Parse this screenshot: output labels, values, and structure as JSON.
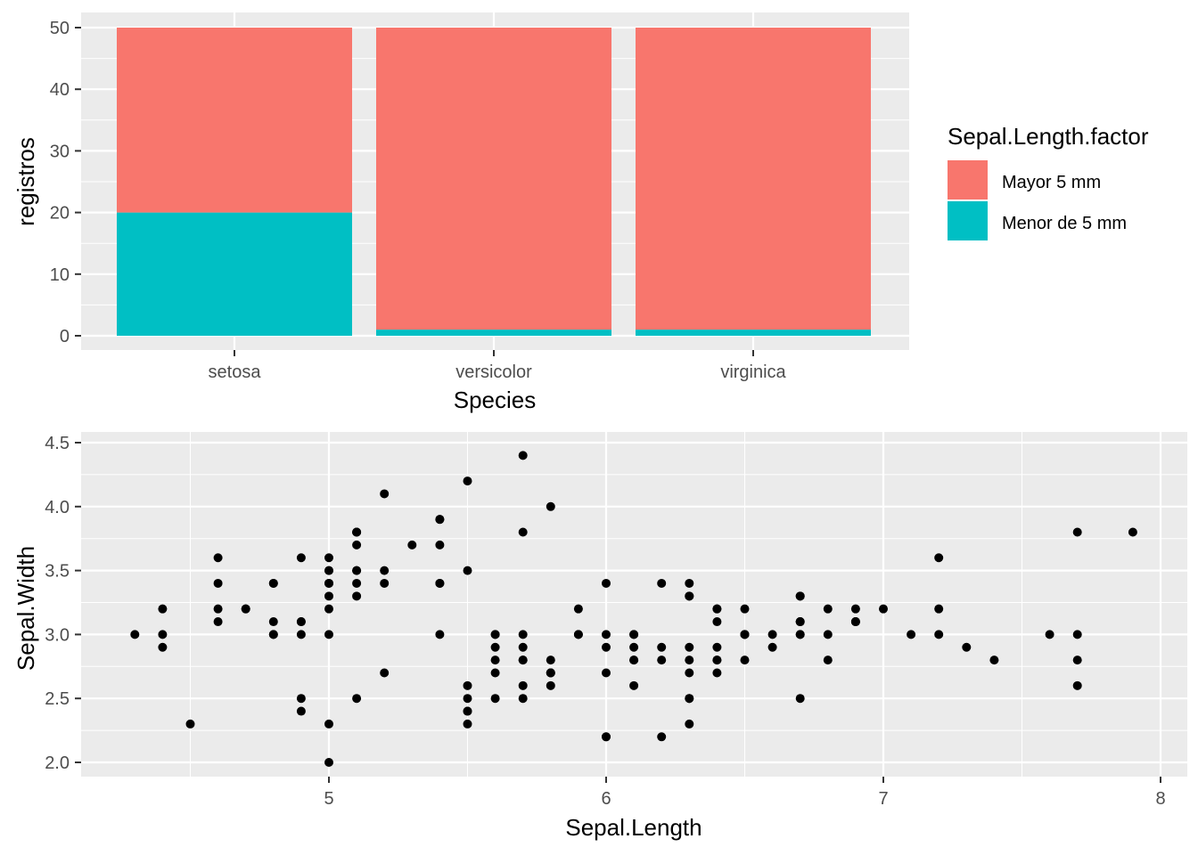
{
  "chart_data": [
    {
      "type": "bar",
      "stacked": true,
      "categories": [
        "setosa",
        "versicolor",
        "virginica"
      ],
      "series": [
        {
          "name": "Mayor 5 mm",
          "color": "#F8766D",
          "values": [
            30,
            49,
            49
          ]
        },
        {
          "name": "Menor de 5 mm",
          "color": "#00BFC4",
          "values": [
            20,
            1,
            1
          ]
        }
      ],
      "xlabel": "Species",
      "ylabel": "registros",
      "ylim": [
        0,
        52.5
      ],
      "yticks": [
        0,
        10,
        20,
        30,
        40,
        50
      ],
      "grid": true,
      "legend": {
        "title": "Sepal.Length.factor",
        "placement": "right",
        "entries": [
          "Mayor 5 mm",
          "Menor de 5 mm"
        ]
      }
    },
    {
      "type": "scatter",
      "xlabel": "Sepal.Length",
      "ylabel": "Sepal.Width",
      "xlim": [
        4.12,
        8.08
      ],
      "ylim": [
        1.88,
        4.52
      ],
      "xticks": [
        5,
        6,
        7,
        8
      ],
      "yticks": [
        "2.0",
        "2.5",
        "3.0",
        "3.5",
        "4.0",
        "4.5"
      ],
      "grid": true,
      "point_color": "#000000",
      "x": [
        5.1,
        4.9,
        4.7,
        4.6,
        5.0,
        5.4,
        4.6,
        5.0,
        4.4,
        4.9,
        5.4,
        4.8,
        4.8,
        4.3,
        5.8,
        5.7,
        5.4,
        5.1,
        5.7,
        5.1,
        5.4,
        5.1,
        4.6,
        5.1,
        4.8,
        5.0,
        5.0,
        5.2,
        5.2,
        4.7,
        4.8,
        5.4,
        5.2,
        5.5,
        4.9,
        5.0,
        5.5,
        4.9,
        4.4,
        5.1,
        5.0,
        4.5,
        4.4,
        5.0,
        5.1,
        4.8,
        5.1,
        4.6,
        5.3,
        5.0,
        7.0,
        6.4,
        6.9,
        5.5,
        6.5,
        5.7,
        6.3,
        4.9,
        6.6,
        5.2,
        5.0,
        5.9,
        6.0,
        6.1,
        5.6,
        6.7,
        5.6,
        5.8,
        6.2,
        5.6,
        5.9,
        6.1,
        6.3,
        6.1,
        6.4,
        6.6,
        6.8,
        6.7,
        6.0,
        5.7,
        5.5,
        5.5,
        5.8,
        6.0,
        5.4,
        6.0,
        6.7,
        6.3,
        5.6,
        5.5,
        5.5,
        6.1,
        5.8,
        5.0,
        5.6,
        5.7,
        5.7,
        6.2,
        5.1,
        5.7,
        6.3,
        5.8,
        7.1,
        6.3,
        6.5,
        7.6,
        4.9,
        7.3,
        6.7,
        7.2,
        6.5,
        6.4,
        6.8,
        5.7,
        5.8,
        6.4,
        6.5,
        7.7,
        7.7,
        6.0,
        6.9,
        5.6,
        7.7,
        6.3,
        6.7,
        7.2,
        6.2,
        6.1,
        6.4,
        7.2,
        7.4,
        7.9,
        6.4,
        6.3,
        6.1,
        7.7,
        6.3,
        6.4,
        6.0,
        6.9,
        6.7,
        6.9,
        5.8,
        6.8,
        6.7,
        6.7,
        6.3,
        6.5,
        6.2,
        5.9
      ],
      "y": [
        3.5,
        3.0,
        3.2,
        3.1,
        3.6,
        3.9,
        3.4,
        3.4,
        2.9,
        3.1,
        3.7,
        3.4,
        3.0,
        3.0,
        4.0,
        4.4,
        3.9,
        3.5,
        3.8,
        3.8,
        3.4,
        3.7,
        3.6,
        3.3,
        3.4,
        3.0,
        3.4,
        3.5,
        3.4,
        3.2,
        3.1,
        3.4,
        4.1,
        4.2,
        3.1,
        3.2,
        3.5,
        3.6,
        3.0,
        3.4,
        3.5,
        2.3,
        3.2,
        3.5,
        3.8,
        3.0,
        3.8,
        3.2,
        3.7,
        3.3,
        3.2,
        3.2,
        3.1,
        2.3,
        2.8,
        2.8,
        3.3,
        2.4,
        2.9,
        2.7,
        2.0,
        3.0,
        2.2,
        2.9,
        2.9,
        3.1,
        3.0,
        2.7,
        2.2,
        2.5,
        3.2,
        2.8,
        2.5,
        2.8,
        2.9,
        3.0,
        2.8,
        3.0,
        2.9,
        2.6,
        2.4,
        2.4,
        2.7,
        2.7,
        3.0,
        3.4,
        3.1,
        2.3,
        3.0,
        2.5,
        2.6,
        3.0,
        2.6,
        2.3,
        2.7,
        3.0,
        2.9,
        2.9,
        2.5,
        2.8,
        3.3,
        2.7,
        3.0,
        2.9,
        3.0,
        3.0,
        2.5,
        2.9,
        2.5,
        3.6,
        3.2,
        2.7,
        3.0,
        2.5,
        2.8,
        3.2,
        3.0,
        3.8,
        2.6,
        2.2,
        3.2,
        2.8,
        2.8,
        2.7,
        3.3,
        3.2,
        2.8,
        3.0,
        2.8,
        3.0,
        2.8,
        3.8,
        2.8,
        2.8,
        2.6,
        3.0,
        3.4,
        3.1,
        3.0,
        3.1,
        3.1,
        3.1,
        2.7,
        3.2,
        3.3,
        3.0,
        2.5,
        3.0,
        3.4,
        3.0
      ]
    }
  ]
}
